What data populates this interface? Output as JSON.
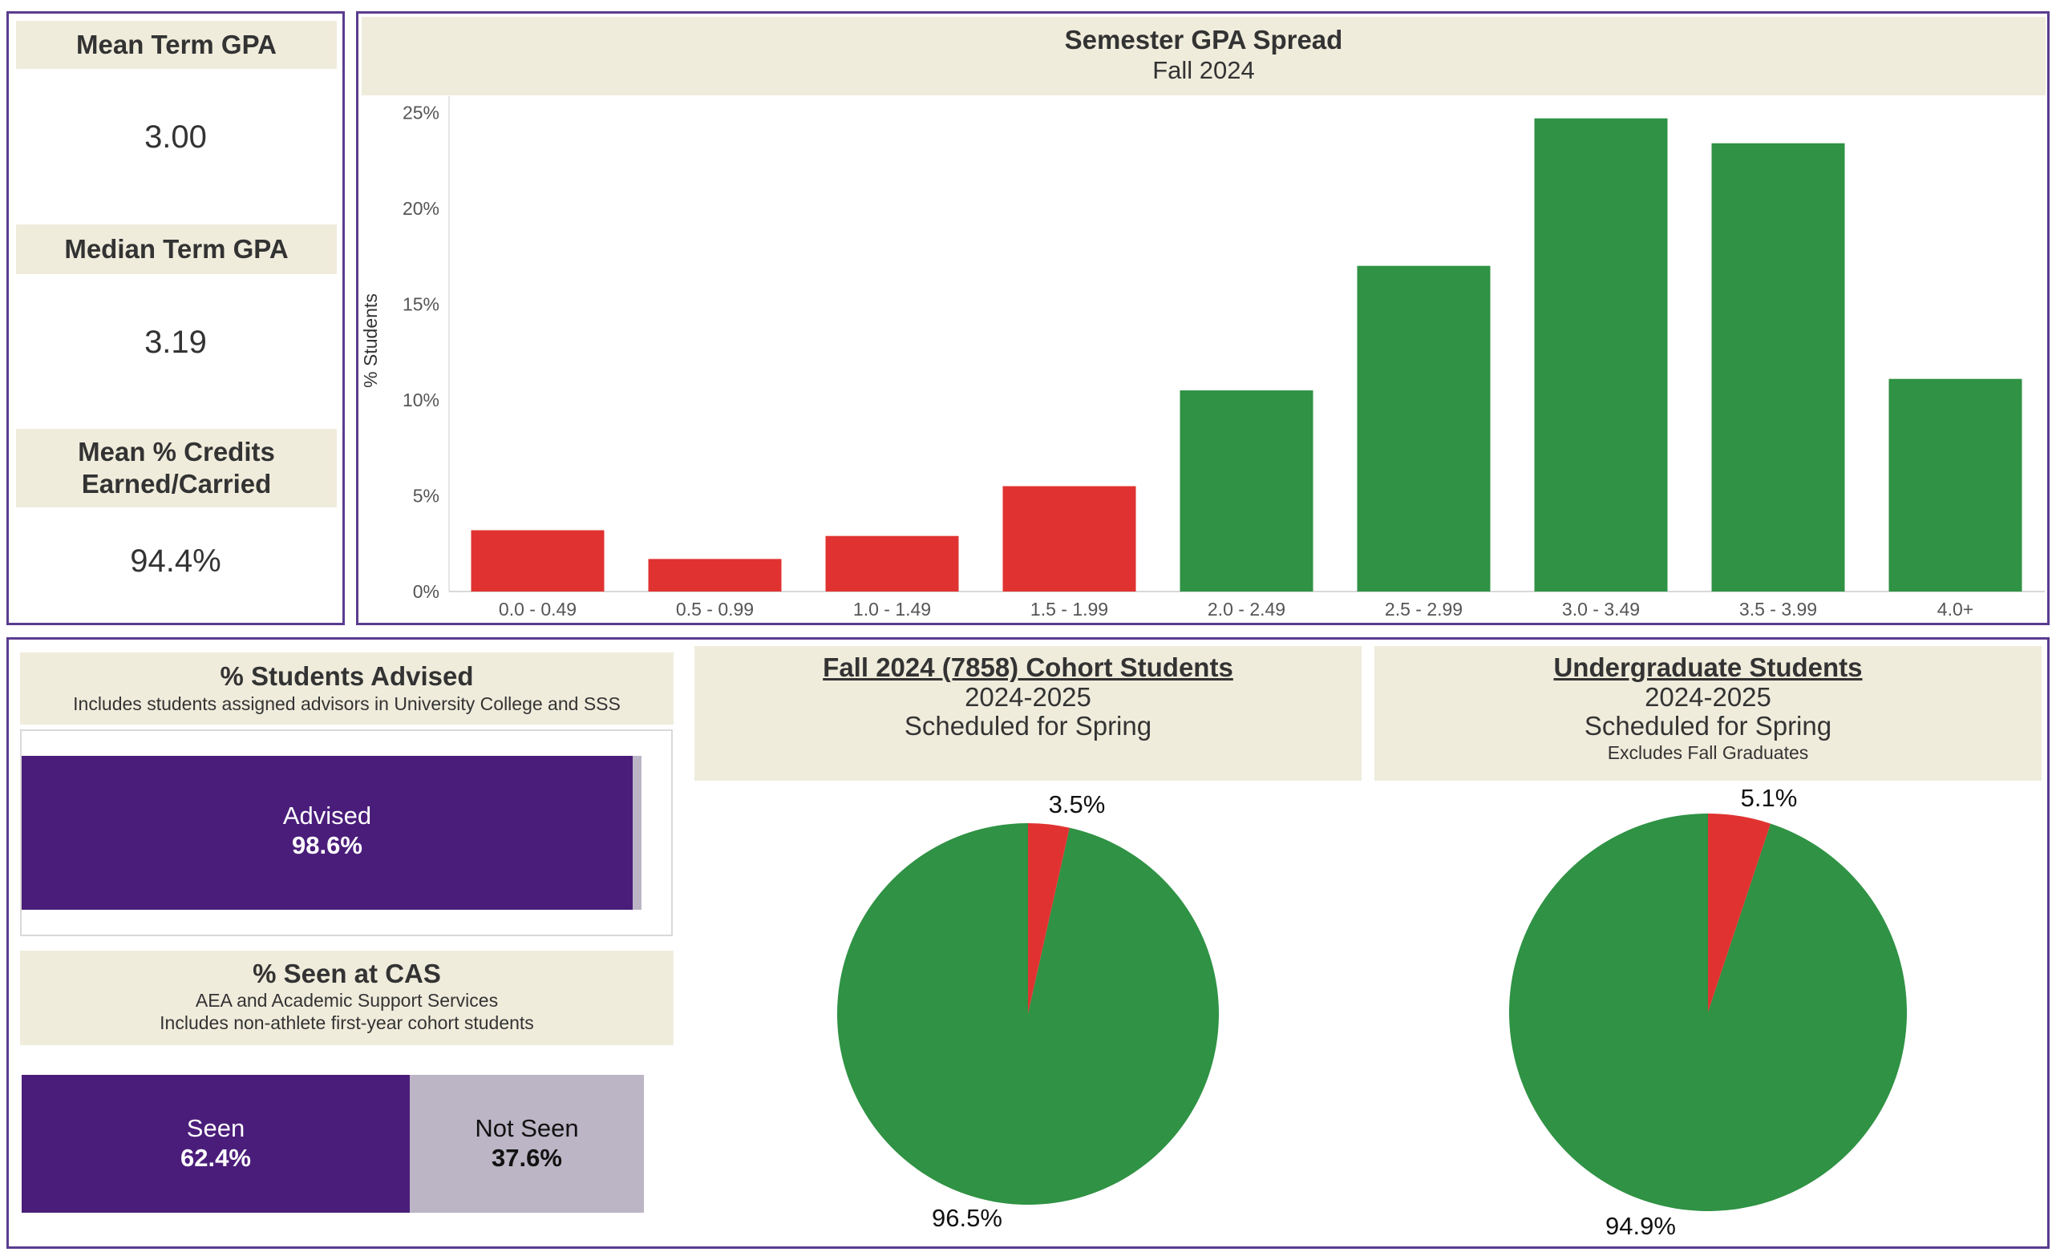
{
  "kpis": {
    "mean_gpa": {
      "label": "Mean Term GPA",
      "value": "3.00"
    },
    "median_gpa": {
      "label": "Median Term GPA",
      "value": "3.19"
    },
    "credits": {
      "label_line1": "Mean % Credits",
      "label_line2": "Earned/Carried",
      "value": "94.4%"
    }
  },
  "gpa_chart": {
    "title": "Semester GPA Spread",
    "subtitle": "Fall 2024"
  },
  "advised": {
    "title": "% Students Advised",
    "subtitle": "Includes students assigned advisors in University College and SSS",
    "segment_label": "Advised",
    "segment_value": "98.6%",
    "fraction": 0.986
  },
  "cas": {
    "title": "% Seen at CAS",
    "subtitle1": "AEA and Academic Support Services",
    "subtitle2": "Includes non-athlete first-year cohort students",
    "seen_label": "Seen",
    "seen_value": "62.4%",
    "not_seen_label": "Not Seen",
    "not_seen_value": "37.6%",
    "seen_fraction": 0.624
  },
  "cohort": {
    "title": "Fall 2024 (7858) Cohort Students",
    "line2": "2024-2025",
    "line3": "Scheduled for Spring",
    "small_label": "3.5%",
    "large_label": "96.5%"
  },
  "undergrad": {
    "title": "Undergraduate Students",
    "line2": "2024-2025",
    "line3": "Scheduled for Spring",
    "line4": "Excludes Fall Graduates",
    "small_label": "5.1%",
    "large_label": "94.9%"
  },
  "colors": {
    "red": "#e03331",
    "green": "#2f9244",
    "purple": "#4a1d7a",
    "gray": "#bbb5c5",
    "header_bg": "#f0ecdc",
    "border": "#5b3c8f"
  },
  "chart_data": [
    {
      "type": "bar",
      "title": "Semester GPA Spread",
      "subtitle": "Fall 2024",
      "ylabel": "% Students",
      "xlabel": "",
      "categories": [
        "0.0 - 0.49",
        "0.5 - 0.99",
        "1.0 - 1.49",
        "1.5 - 1.99",
        "2.0 - 2.49",
        "2.5 - 2.99",
        "3.0 - 3.49",
        "3.5 - 3.99",
        "4.0+"
      ],
      "values": [
        3.2,
        1.7,
        2.9,
        5.5,
        10.5,
        17.0,
        24.7,
        23.4,
        11.1
      ],
      "bar_colors": [
        "#e03331",
        "#e03331",
        "#e03331",
        "#e03331",
        "#2f9244",
        "#2f9244",
        "#2f9244",
        "#2f9244",
        "#2f9244"
      ],
      "yticks": [
        "0%",
        "5%",
        "10%",
        "15%",
        "20%",
        "25%"
      ],
      "ylim": [
        0,
        26
      ],
      "grid": false
    },
    {
      "type": "pie",
      "title": "Fall 2024 (7858) Cohort Students",
      "slices": [
        {
          "label": "3.5%",
          "value": 3.5,
          "color": "#e03331"
        },
        {
          "label": "96.5%",
          "value": 96.5,
          "color": "#2f9244"
        }
      ]
    },
    {
      "type": "pie",
      "title": "Undergraduate Students",
      "slices": [
        {
          "label": "5.1%",
          "value": 5.1,
          "color": "#e03331"
        },
        {
          "label": "94.9%",
          "value": 94.9,
          "color": "#2f9244"
        }
      ]
    }
  ]
}
